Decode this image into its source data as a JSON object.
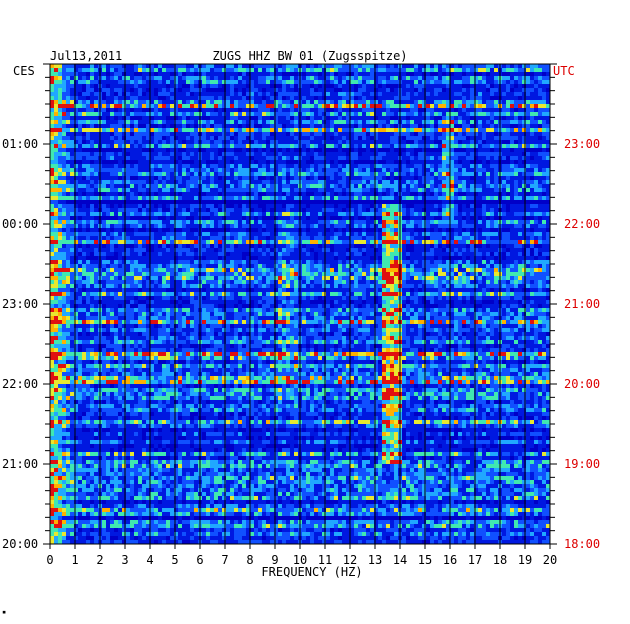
{
  "header": {
    "date": "Jul13,2011",
    "station": "ZUGS HHZ BW 01 (Zugsspitze)"
  },
  "tz": {
    "left": "CES",
    "right": "UTC"
  },
  "chart_data": {
    "type": "heatmap",
    "title": "ZUGS HHZ BW 01 (Zugsspitze)",
    "subtitle": "Jul13,2011",
    "xlabel": "FREQUENCY (HZ)",
    "xlim": [
      0,
      20
    ],
    "x_ticks": [
      "0",
      "1",
      "2",
      "3",
      "4",
      "5",
      "6",
      "7",
      "8",
      "9",
      "10",
      "11",
      "12",
      "13",
      "14",
      "15",
      "16",
      "17",
      "18",
      "19",
      "20"
    ],
    "left_axis_label": "CES",
    "left_ticks": [
      "20:00",
      "21:00",
      "22:00",
      "23:00",
      "00:00",
      "01:00"
    ],
    "right_axis_label": "UTC",
    "right_ticks": [
      "18:00",
      "19:00",
      "20:00",
      "21:00",
      "22:00",
      "23:00"
    ],
    "colors": {
      "background": "#0000c8",
      "grid": "#000000",
      "utc_text": "#dd0000"
    },
    "features": [
      {
        "freq_hz": [
          0.1,
          1.0
        ],
        "note": "persistent low-frequency energy"
      },
      {
        "freq_hz": [
          13.2,
          14.0
        ],
        "note": "strong band ~13.5 Hz between 19:00 and 22:00 UTC"
      },
      {
        "freq_hz": [
          15.6,
          16.1
        ],
        "note": "band ~15.8 Hz around 22:00-23:00 UTC"
      }
    ]
  }
}
